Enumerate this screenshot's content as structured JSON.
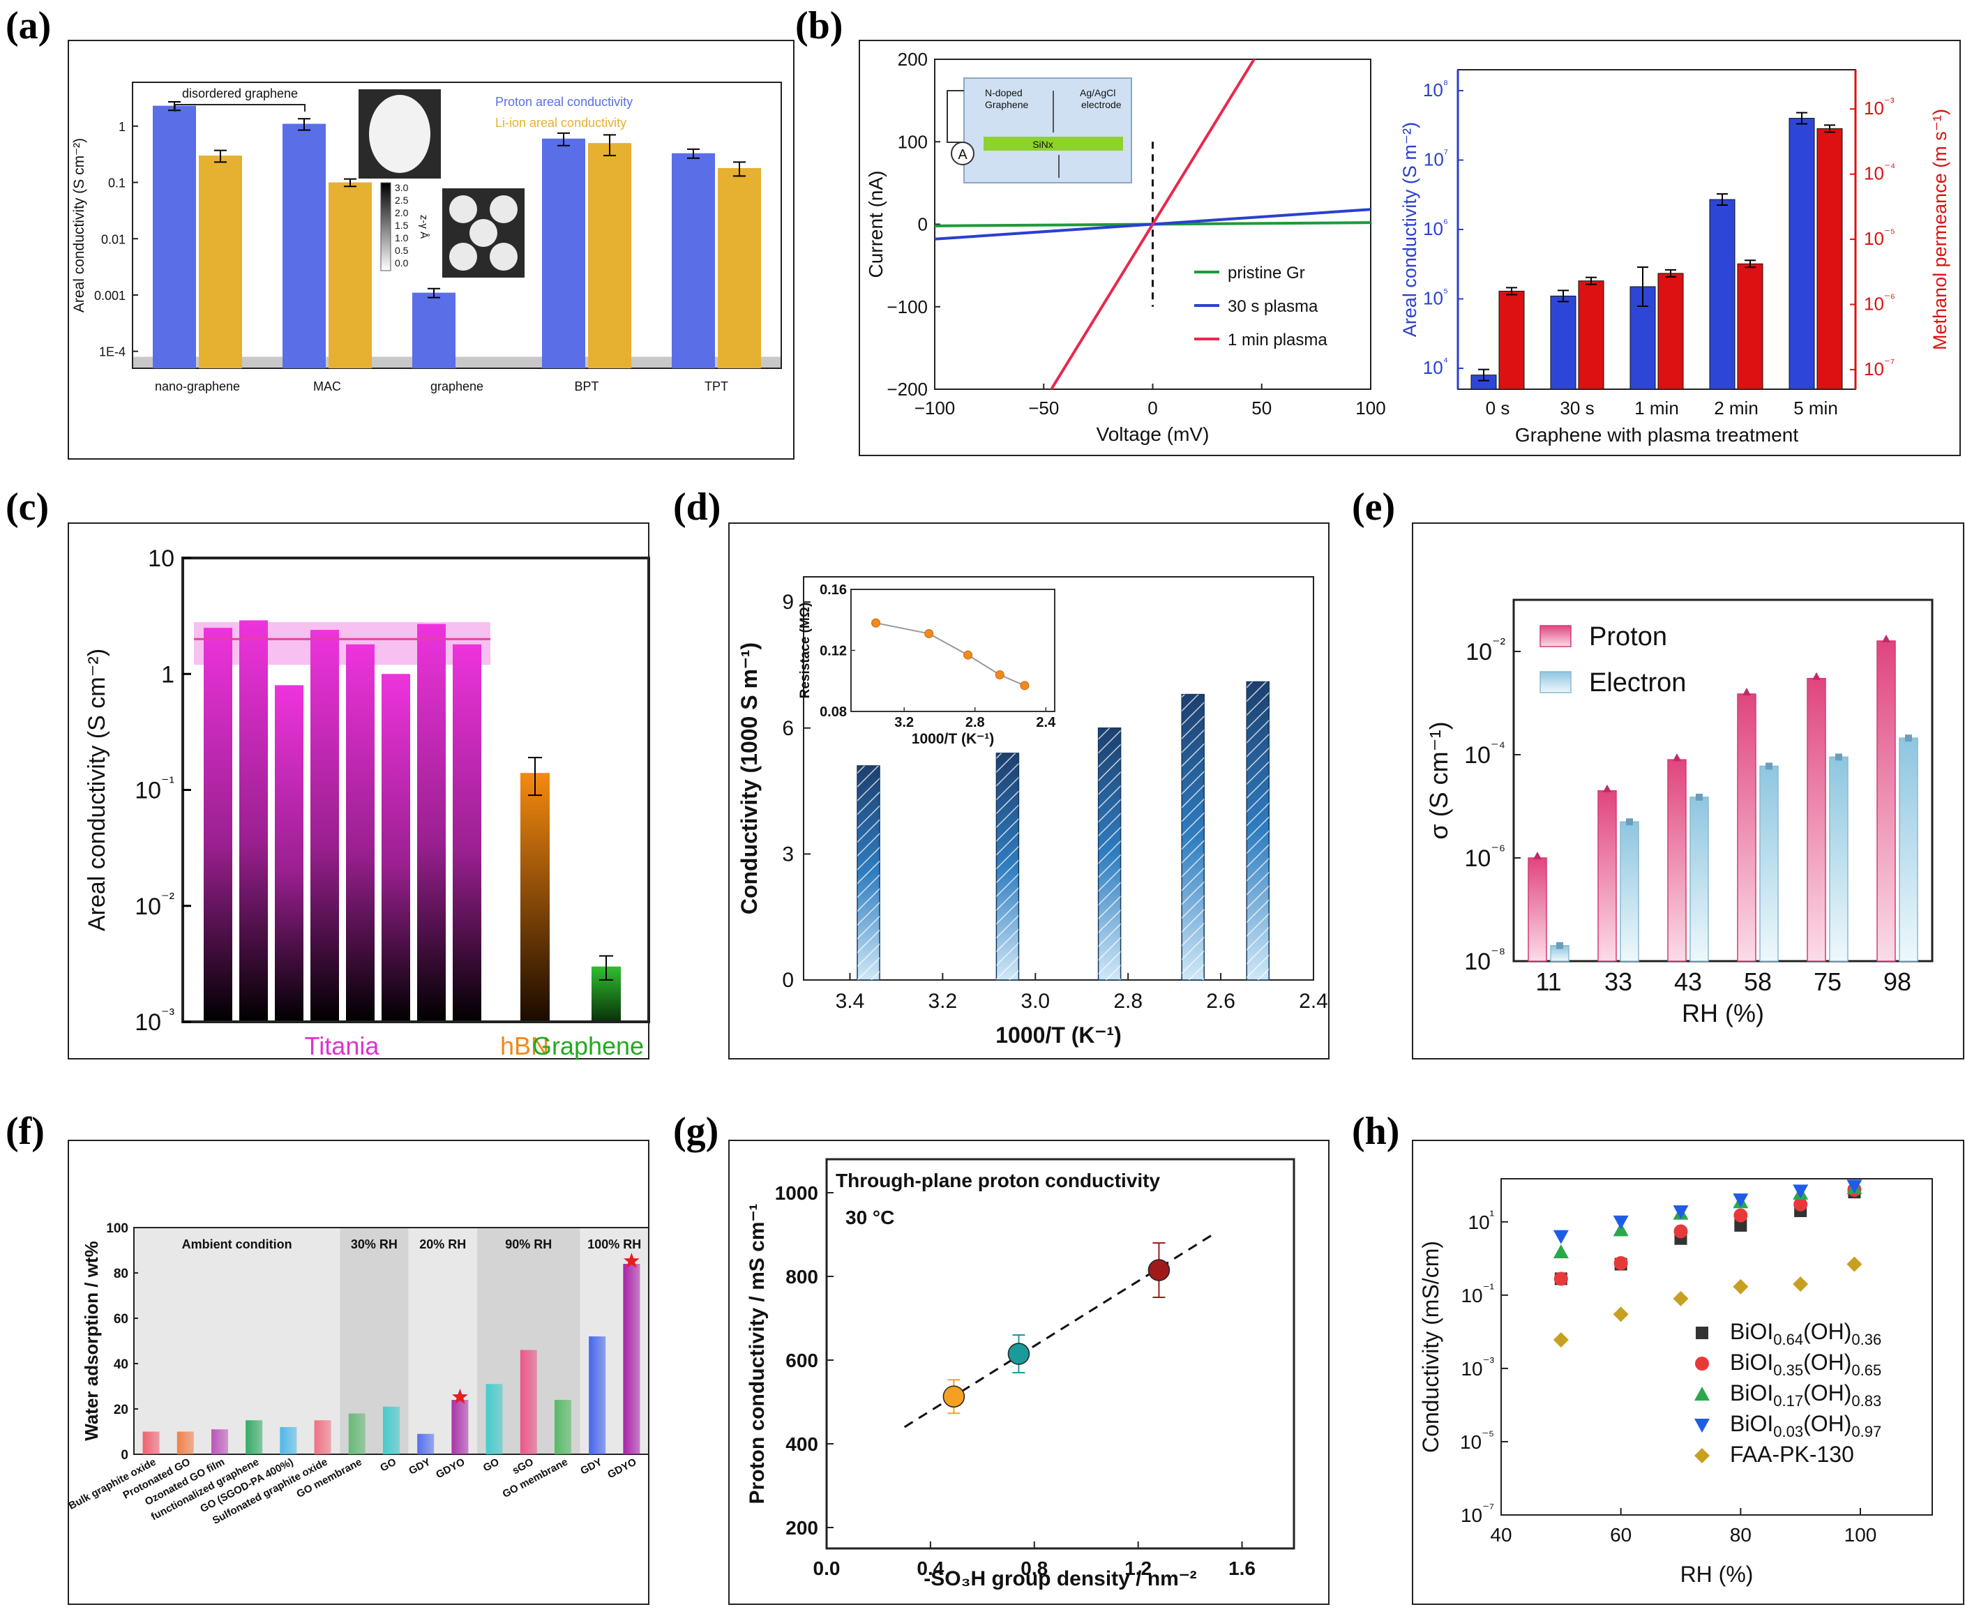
{
  "figure": {
    "panel_labels": [
      "(a)",
      "(b)",
      "(c)",
      "(d)",
      "(e)",
      "(f)",
      "(g)",
      "(h)"
    ]
  },
  "chart_data": [
    {
      "id": "a",
      "type": "bar",
      "yscale": "log",
      "ylim": [
        5e-05,
        6
      ],
      "ylabel": "Areal conductivity (S cm⁻²)",
      "yticks": [
        "1E-4",
        "0.001",
        "0.01",
        "0.1",
        "1"
      ],
      "categories": [
        "nano-graphene",
        "MAC",
        "graphene",
        "BPT",
        "TPT"
      ],
      "series": [
        {
          "name": "Proton areal conductivity",
          "color": "#5a6ee8",
          "values": [
            2.3,
            1.1,
            0.0011,
            0.6,
            0.33
          ],
          "errors": [
            0.4,
            0.25,
            0.0002,
            0.15,
            0.06
          ]
        },
        {
          "name": "Li-ion areal conductivity",
          "color": "#e6b030",
          "values": [
            0.3,
            0.1,
            3e-05,
            0.5,
            0.18
          ],
          "errors": [
            0.07,
            0.015,
            0,
            0.2,
            0.05
          ]
        }
      ],
      "annotation": "disordered graphene",
      "colorbar_ticks": [
        "3.0",
        "2.5",
        "2.0",
        "1.5",
        "1.0",
        "0.5",
        "0.0"
      ],
      "colorbar_label": "z-γ Å",
      "shaded_below": 5e-05
    },
    {
      "id": "b1",
      "type": "line",
      "xlabel": "Voltage (mV)",
      "ylabel": "Current (nA)",
      "xlim": [
        -100,
        100
      ],
      "ylim": [
        -200,
        200
      ],
      "xticks": [
        -100,
        -50,
        0,
        50,
        100
      ],
      "yticks": [
        -200,
        -100,
        0,
        100,
        200
      ],
      "series": [
        {
          "name": "pristine Gr",
          "color": "#1e9a3a",
          "slope": 0.02
        },
        {
          "name": "30 s plasma",
          "color": "#2a3fd0",
          "slope": 0.18
        },
        {
          "name": "1 min plasma",
          "color": "#e8284e",
          "slope": 4.3
        }
      ],
      "inset_labels": [
        "N-doped Graphene",
        "Ag/AgCl electrode",
        "SiNx",
        "A"
      ]
    },
    {
      "id": "b2",
      "type": "bar",
      "yscale": "log",
      "xlabel": "Graphene with plasma treatment",
      "ylabel": "Areal conductivity (S m⁻²)",
      "ylabel_right": "Methanol permeance (m s⁻¹)",
      "categories": [
        "0 s",
        "30 s",
        "1 min",
        "2 min",
        "5 min"
      ],
      "ylim_left": [
        5000,
        200000000
      ],
      "ylim_right": [
        5e-08,
        0.004
      ],
      "series": [
        {
          "name": "Areal conductivity",
          "axis": "left",
          "color": "#2e46d8",
          "values": [
            8000,
            110000,
            150000,
            2700000,
            40000000
          ]
        },
        {
          "name": "Methanol permeance",
          "axis": "right",
          "color": "#dd1111",
          "values": [
            1.6e-06,
            2.3e-06,
            3e-06,
            4.2e-06,
            0.0005
          ]
        }
      ],
      "yticks_left": [
        "10⁴",
        "10⁵",
        "10⁶",
        "10⁷",
        "10⁸"
      ],
      "yticks_right": [
        "10⁻⁷",
        "10⁻⁶",
        "10⁻⁵",
        "10⁻⁴",
        "10⁻³"
      ]
    },
    {
      "id": "c",
      "type": "bar",
      "yscale": "log",
      "ylim": [
        0.001,
        10
      ],
      "ylabel": "Areal conductivity (S cm⁻²)",
      "yticks": [
        "10⁻³",
        "10⁻²",
        "10⁻¹",
        "1",
        "10"
      ],
      "groups": [
        {
          "name": "Titania",
          "color": "#dd33cc",
          "values": [
            2.5,
            2.9,
            0.8,
            2.4,
            1.8,
            1.0,
            2.7,
            1.8
          ]
        },
        {
          "name": "hBN",
          "color": "#f08818",
          "values": [
            0.14
          ],
          "errors": [
            0.05
          ]
        },
        {
          "name": "Graphene",
          "color": "#22aa22",
          "values": [
            0.003
          ],
          "errors": [
            0.0007
          ]
        }
      ],
      "band": [
        1.2,
        2.8
      ],
      "band_line": 2.0
    },
    {
      "id": "d",
      "type": "bar",
      "xlabel": "1000/T (K⁻¹)",
      "ylabel": "Conductivity (1000 S m⁻¹)",
      "xlim": [
        3.5,
        2.4
      ],
      "ylim": [
        0,
        9.6
      ],
      "xticks": [
        "3.4",
        "3.2",
        "3.0",
        "2.8",
        "2.6",
        "2.4"
      ],
      "yticks": [
        "0",
        "3",
        "6",
        "9"
      ],
      "x": [
        3.36,
        3.06,
        2.84,
        2.66,
        2.52
      ],
      "values": [
        5.1,
        5.4,
        6.0,
        6.8,
        7.1
      ],
      "inset": {
        "xlabel": "1000/T (K⁻¹)",
        "ylabel": "Resistace (MΩ)",
        "xticks": [
          "3.2",
          "2.8",
          "2.4"
        ],
        "yticks": [
          "0.08",
          "0.12",
          "0.16"
        ],
        "x": [
          3.36,
          3.06,
          2.84,
          2.66,
          2.52
        ],
        "values": [
          0.138,
          0.131,
          0.117,
          0.104,
          0.097
        ]
      }
    },
    {
      "id": "e",
      "type": "bar",
      "yscale": "log",
      "xlabel": "RH (%)",
      "ylabel": "σ (S cm⁻¹)",
      "categories": [
        "11",
        "33",
        "43",
        "58",
        "75",
        "98"
      ],
      "ylim": [
        1e-08,
        0.1
      ],
      "yticks": [
        "10⁻⁸",
        "10⁻⁶",
        "10⁻⁴",
        "10⁻²"
      ],
      "series": [
        {
          "name": "Proton",
          "color": "#e97aa8",
          "values": [
            1e-06,
            2e-05,
            8e-05,
            0.0015,
            0.003,
            0.016
          ]
        },
        {
          "name": "Electron",
          "color": "#a9d2e4",
          "values": [
            2e-08,
            5e-06,
            1.5e-05,
            6e-05,
            9e-05,
            0.00021
          ]
        }
      ]
    },
    {
      "id": "f",
      "type": "bar",
      "ylabel": "Water adsorption / wt%",
      "ylim": [
        0,
        100
      ],
      "yticks": [
        "0",
        "20",
        "40",
        "60",
        "80",
        "100"
      ],
      "regions": [
        "Ambient condition",
        "30% RH",
        "20% RH",
        "90% RH",
        "100% RH"
      ],
      "categories": [
        "Bulk graphite oxide",
        "Protonated GO",
        "Ozonated GO film",
        "functionalized graphene",
        "GO (SGOD-PA 400%)",
        "Sulfonated graphite oxide",
        "GO membrane",
        "GO",
        "GDY",
        "GDYO",
        "GO",
        "sGO",
        "GO membrane",
        "GDY",
        "GDYO"
      ],
      "values": [
        10,
        10,
        11,
        15,
        12,
        15,
        18,
        21,
        9,
        24,
        31,
        46,
        24,
        52,
        84
      ],
      "colors": [
        "#f06070",
        "#f0804a",
        "#bb55bb",
        "#33aa66",
        "#4fb8e8",
        "#f07080",
        "#66bb77",
        "#44cccc",
        "#5570ee",
        "#aa33aa",
        "#44cccc",
        "#ee5588",
        "#55bb66",
        "#4466ee",
        "#aa22aa"
      ],
      "highlighted": [
        "GDYO"
      ]
    },
    {
      "id": "g",
      "type": "scatter",
      "title": "Through-plane proton conductivity",
      "annotation": "30 °C",
      "xlabel": "-SO₃H group density /  nm⁻²",
      "ylabel": "Proton conductivity / mS cm⁻¹",
      "xlim": [
        0,
        1.8
      ],
      "ylim": [
        150,
        1080
      ],
      "xticks": [
        "0.0",
        "0.4",
        "0.8",
        "1.2",
        "1.6"
      ],
      "yticks": [
        "200",
        "400",
        "600",
        "800",
        "1000"
      ],
      "points": [
        {
          "x": 0.49,
          "y": 513,
          "err": 40,
          "color": "#f5a020"
        },
        {
          "x": 0.74,
          "y": 615,
          "err": 45,
          "color": "#1a9a9a"
        },
        {
          "x": 1.28,
          "y": 815,
          "err": 65,
          "color": "#a01a1a"
        }
      ],
      "fit": {
        "x": [
          0.3,
          1.5
        ],
        "y": [
          440,
          905
        ]
      }
    },
    {
      "id": "h",
      "type": "scatter",
      "yscale": "log",
      "xlabel": "RH (%)",
      "ylabel": "Conductivity (mS/cm)",
      "xlim": [
        40,
        112
      ],
      "ylim": [
        1e-07,
        150
      ],
      "xticks": [
        "40",
        "60",
        "80",
        "100"
      ],
      "yticks": [
        "10⁻⁷",
        "10⁻⁵",
        "10⁻³",
        "10⁻¹",
        "10¹"
      ],
      "x": [
        50,
        60,
        70,
        80,
        90,
        99
      ],
      "series": [
        {
          "name": "BiOI0.64(OH)0.36",
          "label": [
            "BiOI",
            "0.64",
            "(OH)",
            "0.36"
          ],
          "marker": "square",
          "color": "#333333",
          "values": [
            0.28,
            0.7,
            3.5,
            8,
            20,
            65
          ]
        },
        {
          "name": "BiOI0.35(OH)0.65",
          "label": [
            "BiOI",
            "0.35",
            "(OH)",
            "0.65"
          ],
          "marker": "circle",
          "color": "#e8393a",
          "values": [
            0.28,
            0.75,
            5.5,
            15,
            30,
            75
          ]
        },
        {
          "name": "BiOI0.17(OH)0.83",
          "label": [
            "BiOI",
            "0.17",
            "(OH)",
            "0.83"
          ],
          "marker": "triangle-up",
          "color": "#2aa84a",
          "values": [
            1.5,
            6,
            17,
            35,
            60,
            85
          ]
        },
        {
          "name": "BiOI0.03(OH)0.97",
          "label": [
            "BiOI",
            "0.03",
            "(OH)",
            "0.97"
          ],
          "marker": "triangle-down",
          "color": "#1e5ce8",
          "values": [
            4,
            10,
            19,
            40,
            70,
            95
          ]
        },
        {
          "name": "FAA-PK-130",
          "label": [
            "FAA-PK-130",
            "",
            "",
            ""
          ],
          "marker": "diamond",
          "color": "#c8a020",
          "values": [
            0.006,
            0.03,
            0.08,
            0.17,
            0.2,
            0.7
          ]
        }
      ]
    }
  ]
}
